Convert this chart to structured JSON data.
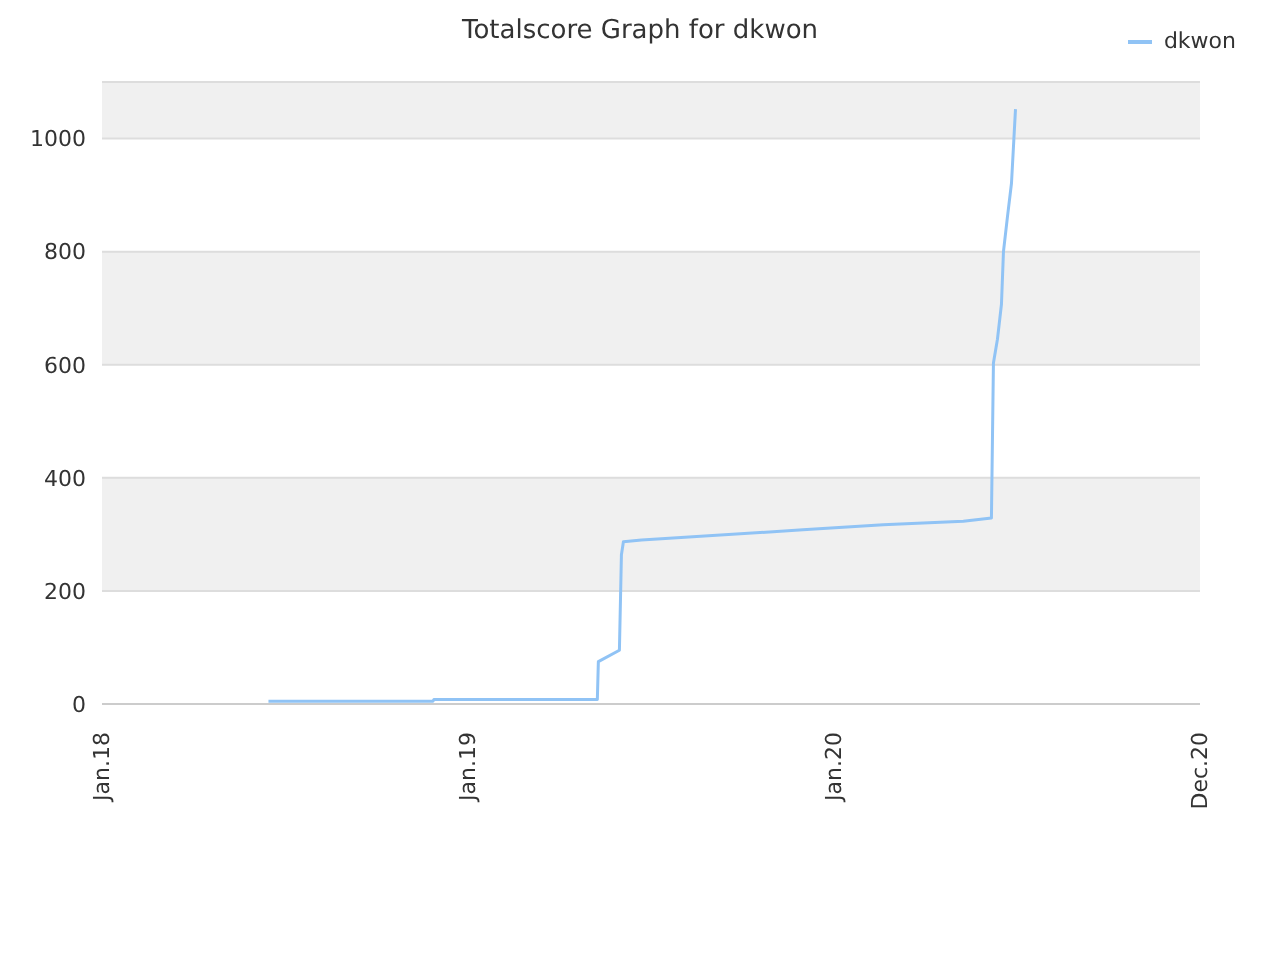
{
  "chart_data": {
    "type": "line",
    "title": "Totalscore Graph for dkwon",
    "x": [
      "2018-06-16",
      "2018-11-27",
      "2018-11-28",
      "2019-05-10",
      "2019-05-11",
      "2019-06-01",
      "2019-06-03",
      "2019-06-05",
      "2019-06-23",
      "2019-12-01",
      "2020-02-19",
      "2020-05-09",
      "2020-06-06",
      "2020-06-08",
      "2020-06-12",
      "2020-06-16",
      "2020-06-18",
      "2020-06-22",
      "2020-06-26",
      "2020-06-30"
    ],
    "series": [
      {
        "name": "dkwon",
        "color": "#90c3f5",
        "values": [
          5,
          5,
          8,
          8,
          75,
          95,
          264,
          287,
          290,
          308,
          317,
          323,
          329,
          603,
          645,
          707,
          800,
          862,
          921,
          1052
        ]
      }
    ],
    "xlim": [
      "2018-01-01",
      "2020-12-31"
    ],
    "xticks": [
      {
        "value": "2018-01-01",
        "label": "Jan.18"
      },
      {
        "value": "2019-01-01",
        "label": "Jan.19"
      },
      {
        "value": "2020-01-01",
        "label": "Jan.20"
      },
      {
        "value": "2020-12-31",
        "label": "Dec.20"
      }
    ],
    "ylim": [
      0,
      1100
    ],
    "yticks": [
      0,
      200,
      400,
      600,
      800,
      1000
    ],
    "grid": "y",
    "legend": "top right",
    "marker": "none",
    "line_style": "solid"
  }
}
